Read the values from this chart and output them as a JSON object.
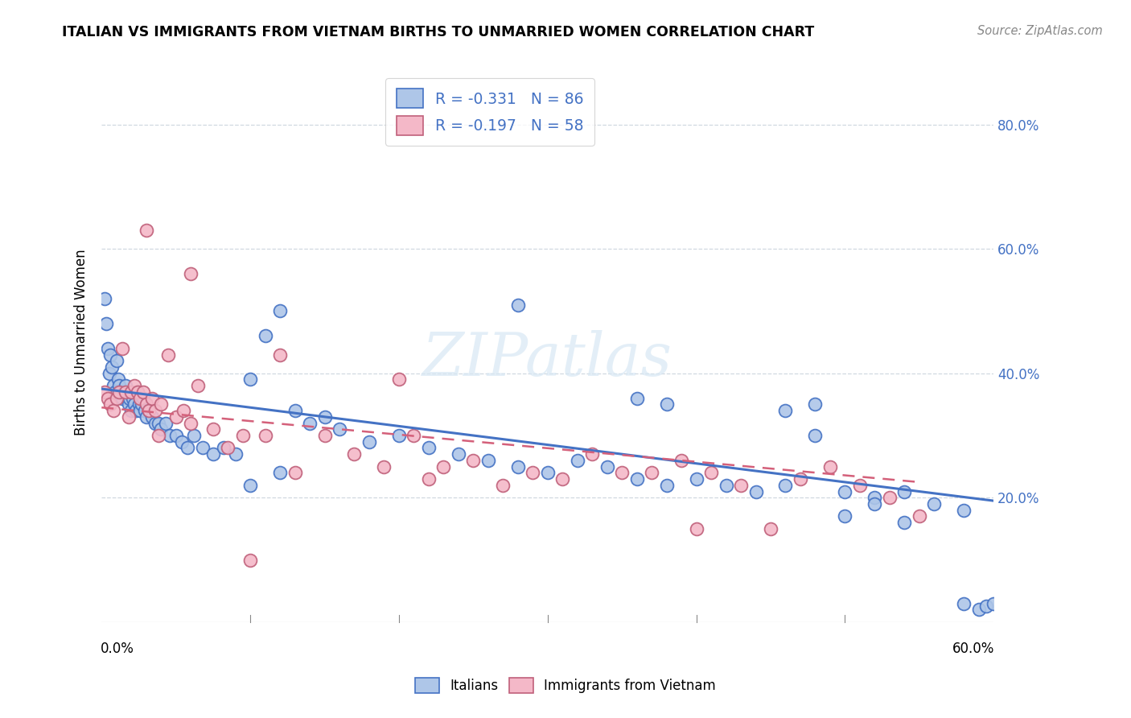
{
  "title": "ITALIAN VS IMMIGRANTS FROM VIETNAM BIRTHS TO UNMARRIED WOMEN CORRELATION CHART",
  "source": "Source: ZipAtlas.com",
  "ylabel": "Births to Unmarried Women",
  "italians_color": "#aec6e8",
  "italians_edge": "#4472c4",
  "vietnam_color": "#f4b8c8",
  "vietnam_edge": "#c0607a",
  "trend_italian_color": "#4472c4",
  "trend_vietnam_color": "#d4607a",
  "watermark": "ZIPatlas",
  "italians_R": -0.331,
  "italians_N": 86,
  "vietnam_R": -0.197,
  "vietnam_N": 58,
  "xlim": [
    0.0,
    0.6
  ],
  "ylim": [
    0.0,
    0.9
  ],
  "trend_it_x0": 0.0,
  "trend_it_y0": 0.375,
  "trend_it_x1": 0.6,
  "trend_it_y1": 0.195,
  "trend_vn_x0": 0.0,
  "trend_vn_y0": 0.345,
  "trend_vn_x1": 0.55,
  "trend_vn_y1": 0.225,
  "italians_x": [
    0.002,
    0.003,
    0.004,
    0.005,
    0.006,
    0.007,
    0.008,
    0.009,
    0.01,
    0.011,
    0.012,
    0.013,
    0.014,
    0.015,
    0.016,
    0.017,
    0.018,
    0.019,
    0.02,
    0.021,
    0.022,
    0.023,
    0.024,
    0.025,
    0.026,
    0.027,
    0.028,
    0.029,
    0.03,
    0.032,
    0.034,
    0.036,
    0.038,
    0.04,
    0.043,
    0.046,
    0.05,
    0.054,
    0.058,
    0.062,
    0.068,
    0.075,
    0.082,
    0.09,
    0.1,
    0.11,
    0.12,
    0.13,
    0.14,
    0.15,
    0.16,
    0.18,
    0.2,
    0.22,
    0.24,
    0.26,
    0.28,
    0.3,
    0.32,
    0.34,
    0.36,
    0.38,
    0.4,
    0.42,
    0.44,
    0.46,
    0.48,
    0.5,
    0.52,
    0.54,
    0.56,
    0.58,
    0.5,
    0.52,
    0.54,
    0.46,
    0.48,
    0.36,
    0.38,
    0.28,
    0.1,
    0.12,
    0.58,
    0.59,
    0.595,
    0.6
  ],
  "italians_y": [
    0.52,
    0.48,
    0.44,
    0.4,
    0.43,
    0.41,
    0.38,
    0.37,
    0.42,
    0.39,
    0.38,
    0.37,
    0.36,
    0.37,
    0.38,
    0.36,
    0.35,
    0.36,
    0.34,
    0.36,
    0.35,
    0.34,
    0.37,
    0.35,
    0.34,
    0.35,
    0.36,
    0.34,
    0.33,
    0.34,
    0.33,
    0.32,
    0.32,
    0.31,
    0.32,
    0.3,
    0.3,
    0.29,
    0.28,
    0.3,
    0.28,
    0.27,
    0.28,
    0.27,
    0.39,
    0.46,
    0.5,
    0.34,
    0.32,
    0.33,
    0.31,
    0.29,
    0.3,
    0.28,
    0.27,
    0.26,
    0.25,
    0.24,
    0.26,
    0.25,
    0.23,
    0.22,
    0.23,
    0.22,
    0.21,
    0.22,
    0.3,
    0.21,
    0.2,
    0.21,
    0.19,
    0.18,
    0.17,
    0.19,
    0.16,
    0.34,
    0.35,
    0.36,
    0.35,
    0.51,
    0.22,
    0.24,
    0.03,
    0.02,
    0.025,
    0.03
  ],
  "vietnam_x": [
    0.002,
    0.004,
    0.006,
    0.008,
    0.01,
    0.012,
    0.014,
    0.016,
    0.018,
    0.02,
    0.022,
    0.024,
    0.026,
    0.028,
    0.03,
    0.032,
    0.034,
    0.036,
    0.038,
    0.04,
    0.045,
    0.05,
    0.055,
    0.06,
    0.065,
    0.075,
    0.085,
    0.095,
    0.11,
    0.13,
    0.15,
    0.17,
    0.19,
    0.21,
    0.23,
    0.25,
    0.27,
    0.29,
    0.31,
    0.33,
    0.35,
    0.37,
    0.39,
    0.41,
    0.43,
    0.45,
    0.47,
    0.49,
    0.51,
    0.53,
    0.55,
    0.03,
    0.06,
    0.1,
    0.12,
    0.2,
    0.22,
    0.4
  ],
  "vietnam_y": [
    0.37,
    0.36,
    0.35,
    0.34,
    0.36,
    0.37,
    0.44,
    0.37,
    0.33,
    0.37,
    0.38,
    0.37,
    0.36,
    0.37,
    0.35,
    0.34,
    0.36,
    0.34,
    0.3,
    0.35,
    0.43,
    0.33,
    0.34,
    0.32,
    0.38,
    0.31,
    0.28,
    0.3,
    0.3,
    0.24,
    0.3,
    0.27,
    0.25,
    0.3,
    0.25,
    0.26,
    0.22,
    0.24,
    0.23,
    0.27,
    0.24,
    0.24,
    0.26,
    0.24,
    0.22,
    0.15,
    0.23,
    0.25,
    0.22,
    0.2,
    0.17,
    0.63,
    0.56,
    0.1,
    0.43,
    0.39,
    0.23,
    0.15
  ]
}
